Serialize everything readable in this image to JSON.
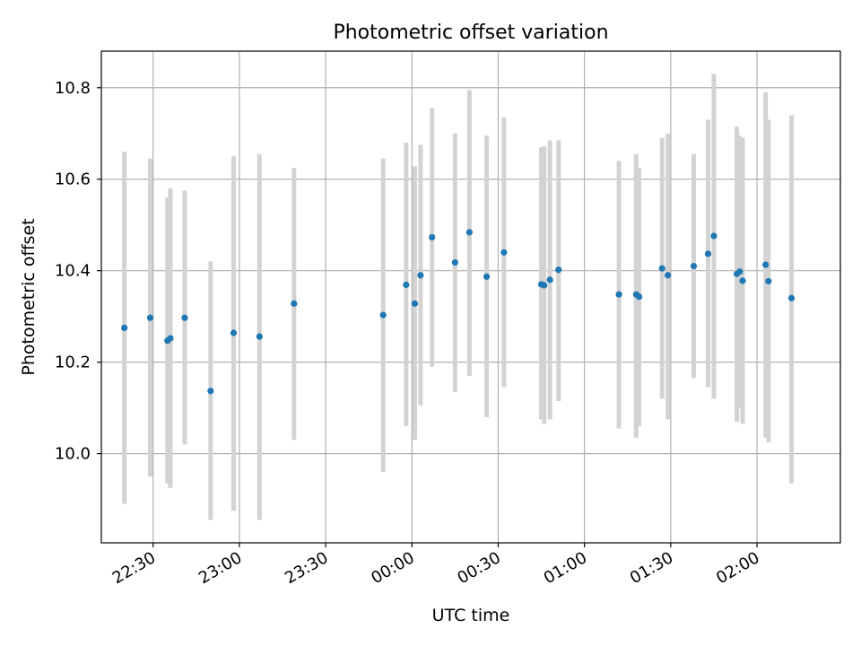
{
  "chart_data": {
    "type": "scatter",
    "title": "Photometric offset variation",
    "xlabel": "UTC time",
    "ylabel": "Photometric offset",
    "x_ticks": [
      "22:30",
      "23:00",
      "23:30",
      "00:00",
      "00:30",
      "01:00",
      "01:30",
      "02:00"
    ],
    "y_ticks": [
      "10.0",
      "10.2",
      "10.4",
      "10.6",
      "10.8"
    ],
    "y_tick_values": [
      10.0,
      10.2,
      10.4,
      10.6,
      10.8
    ],
    "xlim": [
      "22:12",
      "02:29"
    ],
    "ylim": [
      9.805,
      10.88
    ],
    "grid": true,
    "colors": {
      "point": "#1f77b4",
      "errorbar": "#d3d3d3",
      "grid": "#b0b0b0"
    },
    "points": [
      {
        "x": "22:20",
        "y": 10.275,
        "lo": 9.89,
        "hi": 10.66
      },
      {
        "x": "22:29",
        "y": 10.297,
        "lo": 9.95,
        "hi": 10.645
      },
      {
        "x": "22:35",
        "y": 10.247,
        "lo": 9.935,
        "hi": 10.56
      },
      {
        "x": "22:36",
        "y": 10.252,
        "lo": 9.925,
        "hi": 10.58
      },
      {
        "x": "22:41",
        "y": 10.297,
        "lo": 10.02,
        "hi": 10.575
      },
      {
        "x": "22:50",
        "y": 10.137,
        "lo": 9.855,
        "hi": 10.42
      },
      {
        "x": "22:58",
        "y": 10.264,
        "lo": 9.875,
        "hi": 10.65
      },
      {
        "x": "23:07",
        "y": 10.256,
        "lo": 9.855,
        "hi": 10.655
      },
      {
        "x": "23:19",
        "y": 10.328,
        "lo": 10.03,
        "hi": 10.625
      },
      {
        "x": "23:50",
        "y": 10.303,
        "lo": 9.96,
        "hi": 10.645
      },
      {
        "x": "23:58",
        "y": 10.369,
        "lo": 10.06,
        "hi": 10.68
      },
      {
        "x": "00:01",
        "y": 10.328,
        "lo": 10.03,
        "hi": 10.628
      },
      {
        "x": "00:03",
        "y": 10.39,
        "lo": 10.105,
        "hi": 10.675
      },
      {
        "x": "00:07",
        "y": 10.473,
        "lo": 10.19,
        "hi": 10.755
      },
      {
        "x": "00:15",
        "y": 10.418,
        "lo": 10.135,
        "hi": 10.7
      },
      {
        "x": "00:20",
        "y": 10.484,
        "lo": 10.17,
        "hi": 10.795
      },
      {
        "x": "00:26",
        "y": 10.387,
        "lo": 10.08,
        "hi": 10.695
      },
      {
        "x": "00:32",
        "y": 10.44,
        "lo": 10.145,
        "hi": 10.735
      },
      {
        "x": "00:45",
        "y": 10.37,
        "lo": 10.075,
        "hi": 10.67
      },
      {
        "x": "00:46",
        "y": 10.368,
        "lo": 10.065,
        "hi": 10.672
      },
      {
        "x": "00:48",
        "y": 10.38,
        "lo": 10.075,
        "hi": 10.685
      },
      {
        "x": "00:51",
        "y": 10.402,
        "lo": 10.115,
        "hi": 10.685
      },
      {
        "x": "01:12",
        "y": 10.348,
        "lo": 10.055,
        "hi": 10.64
      },
      {
        "x": "01:18",
        "y": 10.348,
        "lo": 10.035,
        "hi": 10.655
      },
      {
        "x": "01:19",
        "y": 10.343,
        "lo": 10.06,
        "hi": 10.625
      },
      {
        "x": "01:27",
        "y": 10.405,
        "lo": 10.12,
        "hi": 10.69
      },
      {
        "x": "01:29",
        "y": 10.39,
        "lo": 10.075,
        "hi": 10.7
      },
      {
        "x": "01:38",
        "y": 10.41,
        "lo": 10.165,
        "hi": 10.655
      },
      {
        "x": "01:43",
        "y": 10.437,
        "lo": 10.145,
        "hi": 10.73
      },
      {
        "x": "01:45",
        "y": 10.476,
        "lo": 10.12,
        "hi": 10.83
      },
      {
        "x": "01:53",
        "y": 10.393,
        "lo": 10.07,
        "hi": 10.715
      },
      {
        "x": "01:54",
        "y": 10.398,
        "lo": 10.1,
        "hi": 10.695
      },
      {
        "x": "01:55",
        "y": 10.378,
        "lo": 10.065,
        "hi": 10.69
      },
      {
        "x": "02:03",
        "y": 10.413,
        "lo": 10.035,
        "hi": 10.79
      },
      {
        "x": "02:04",
        "y": 10.377,
        "lo": 10.025,
        "hi": 10.73
      },
      {
        "x": "02:12",
        "y": 10.34,
        "lo": 9.935,
        "hi": 10.74
      }
    ]
  }
}
